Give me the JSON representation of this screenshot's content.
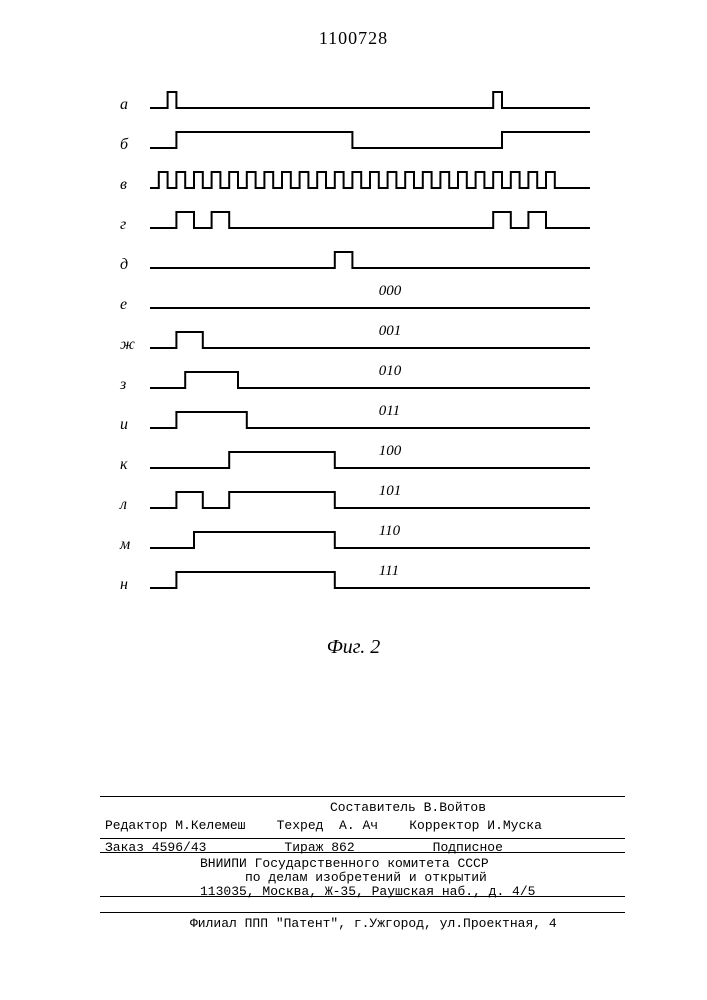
{
  "doc_number": "1100728",
  "fig_caption": "Фиг. 2",
  "diagram": {
    "width_units": 100,
    "pulse_height": 16,
    "line_width": 2,
    "color": "#000000",
    "traces": [
      {
        "label": "а",
        "segments": [
          [
            4,
            6
          ]
        ],
        "repeat_at": [
          78
        ],
        "code": null
      },
      {
        "label": "б",
        "segments": [
          [
            6,
            46
          ]
        ],
        "repeat_at": [
          80
        ],
        "repeat_open": true,
        "code": null
      },
      {
        "label": "в",
        "clock": {
          "start": 2,
          "period": 4,
          "duty": 2,
          "count": 23
        },
        "code": null
      },
      {
        "label": "г",
        "segments": [
          [
            6,
            10
          ],
          [
            14,
            18
          ]
        ],
        "repeat_at": [
          78,
          86
        ],
        "code": null
      },
      {
        "label": "д",
        "segments": [
          [
            42,
            46
          ]
        ],
        "code": null
      },
      {
        "label": "е",
        "segments": [],
        "code": "000"
      },
      {
        "label": "ж",
        "segments": [
          [
            6,
            12
          ]
        ],
        "code": "001"
      },
      {
        "label": "з",
        "segments": [
          [
            8,
            20
          ]
        ],
        "code": "010"
      },
      {
        "label": "и",
        "segments": [
          [
            6,
            22
          ]
        ],
        "code": "011"
      },
      {
        "label": "к",
        "segments": [
          [
            18,
            42
          ]
        ],
        "code": "100"
      },
      {
        "label": "л",
        "segments": [
          [
            6,
            12
          ],
          [
            18,
            42
          ]
        ],
        "code": "101"
      },
      {
        "label": "м",
        "segments": [
          [
            10,
            42
          ]
        ],
        "code": "110"
      },
      {
        "label": "н",
        "segments": [
          [
            6,
            42
          ]
        ],
        "code": "111"
      }
    ]
  },
  "footer": {
    "rule_positions": [
      796,
      838,
      852,
      896,
      912
    ],
    "line_compiler": "Составитель В.Войтов",
    "line_editor": "Редактор М.Келемеш    Техред  А. Ач    Корректор И.Муска",
    "line_order": "Заказ 4596/43          Тираж 862          Подписное",
    "line_vniipi": "ВНИИПИ Государственного комитета СССР",
    "line_affairs": "по делам изобретений и открытий",
    "line_address": "113035, Москва, Ж-35, Раушская наб., д. 4/5",
    "line_branch": "Филиал ППП \"Патент\", г.Ужгород, ул.Проектная, 4"
  }
}
